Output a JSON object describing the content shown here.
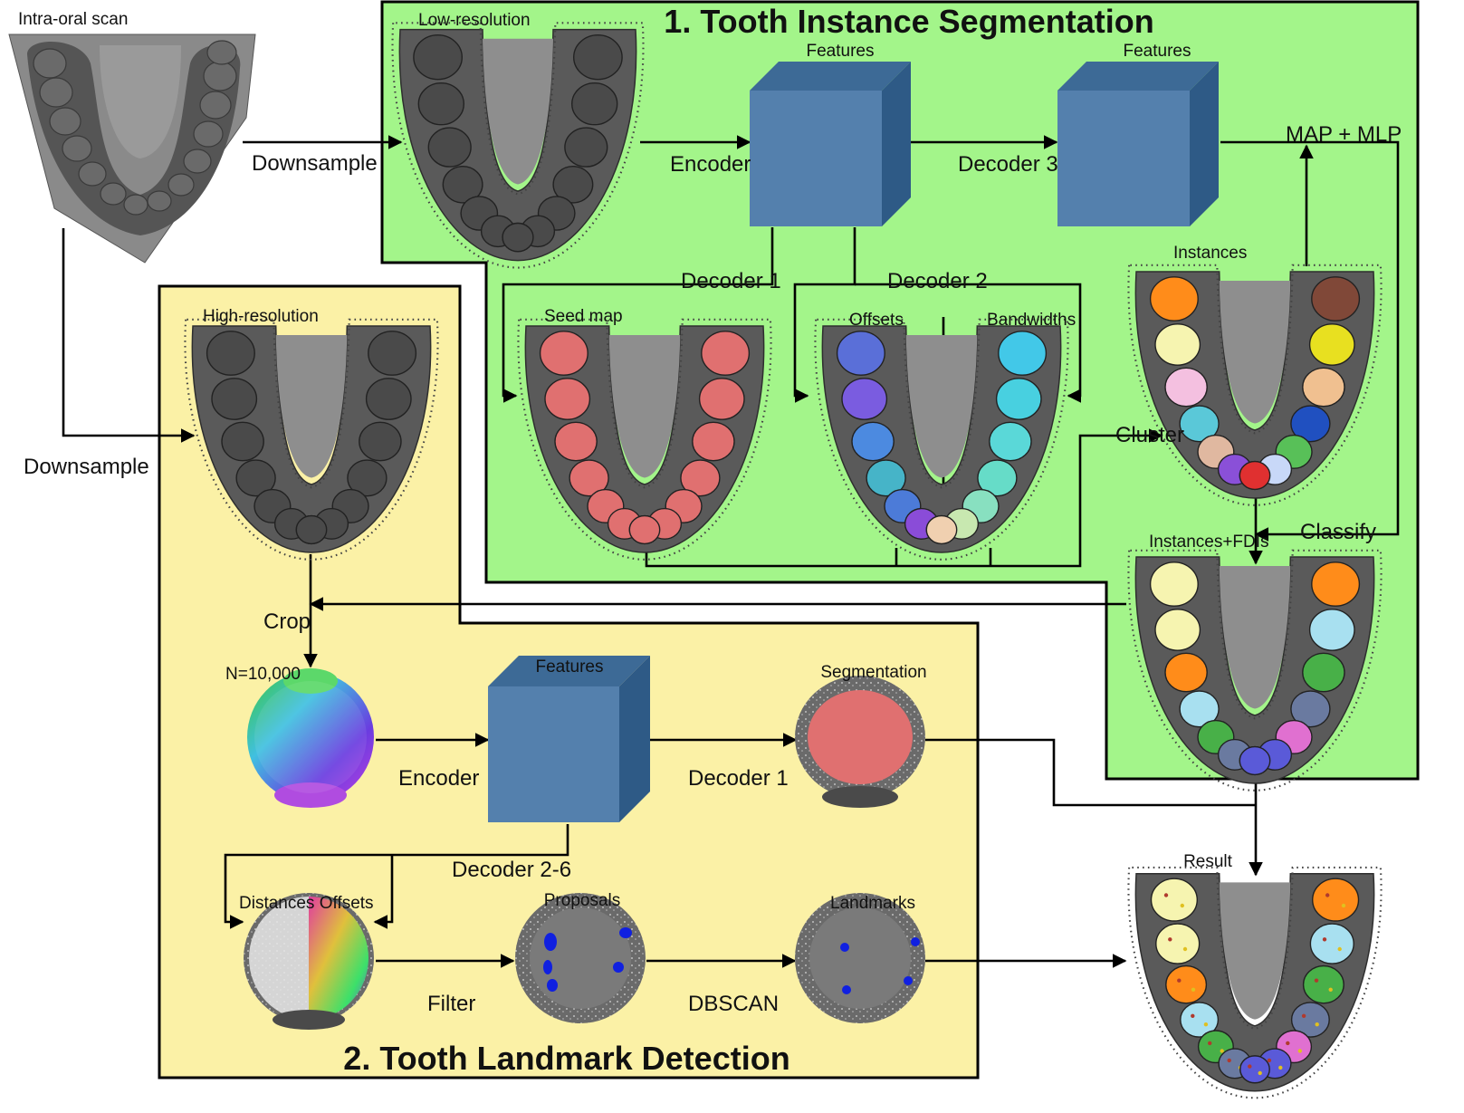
{
  "colors": {
    "segmentation_panel": "#a3f58a",
    "landmark_panel": "#fbf1a6",
    "cube_front": "#5480ad",
    "cube_top": "#3d6a96",
    "cube_side": "#2e5a86",
    "mesh_gray": "#5a5a5a",
    "seed_red": "#e07070"
  },
  "sections": {
    "segmentation_title": "1. Tooth Instance Segmentation",
    "landmark_title": "2. Tooth Landmark Detection"
  },
  "labels": {
    "intra_oral_scan": "Intra-oral scan",
    "downsample_top": "Downsample",
    "downsample_left": "Downsample",
    "low_resolution": "Low-resolution",
    "high_resolution": "High-resolution",
    "features_1": "Features",
    "features_2": "Features",
    "features_3": "Features",
    "encoder_1": "Encoder",
    "encoder_2": "Encoder",
    "decoder_3": "Decoder 3",
    "map_mlp": "MAP + MLP",
    "decoder_1_top": "Decoder 1",
    "decoder_2": "Decoder 2",
    "seed_map": "Seed map",
    "offsets": "Offsets",
    "bandwidths": "Bandwidths",
    "instances": "Instances",
    "cluster": "Cluster",
    "classify": "Classify",
    "instances_fdis": "Instances+FDIs",
    "crop": "Crop",
    "n_points": "N=10,000",
    "segmentation": "Segmentation",
    "decoder_1_bottom": "Decoder 1",
    "decoder_2_6": "Decoder 2-6",
    "distances_offsets": "Distances Offsets",
    "proposals": "Proposals",
    "landmarks": "Landmarks",
    "filter": "Filter",
    "dbscan": "DBSCAN",
    "result": "Result"
  }
}
